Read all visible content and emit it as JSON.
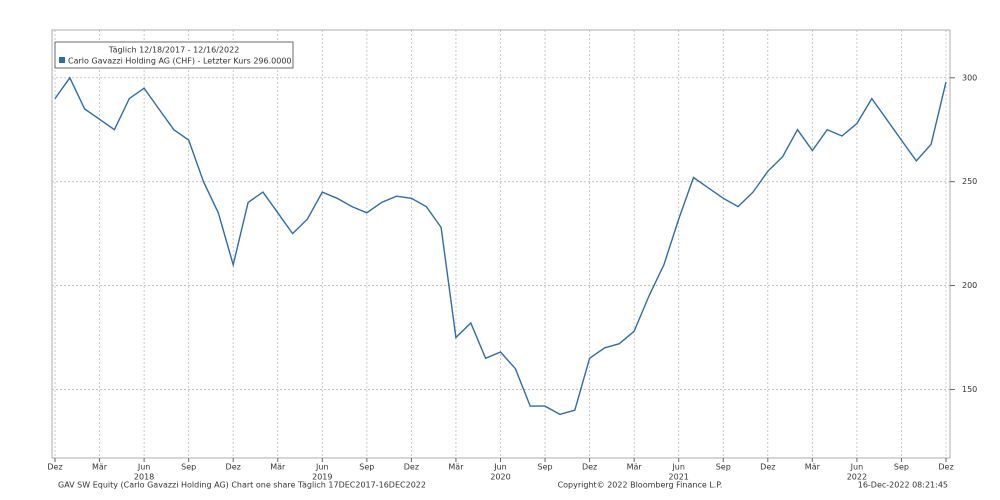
{
  "chart_data": {
    "type": "line",
    "legend_title": "Täglich 12/18/2017 - 12/16/2022",
    "footer_left": "GAV SW Equity (Carlo Gavazzi Holding AG) Chart one share  Täglich 17DEC2017-16DEC2022",
    "footer_center": "Copyright© 2022 Bloomberg Finance L.P.",
    "footer_right": "16-Dec-2022 08:21:45",
    "x": [
      "2017-12",
      "2018-01",
      "2018-02",
      "2018-03",
      "2018-04",
      "2018-05",
      "2018-06",
      "2018-07",
      "2018-08",
      "2018-09",
      "2018-10",
      "2018-11",
      "2018-12",
      "2019-01",
      "2019-02",
      "2019-03",
      "2019-04",
      "2019-05",
      "2019-06",
      "2019-07",
      "2019-08",
      "2019-09",
      "2019-10",
      "2019-11",
      "2019-12",
      "2020-01",
      "2020-02",
      "2020-03",
      "2020-04",
      "2020-05",
      "2020-06",
      "2020-07",
      "2020-08",
      "2020-09",
      "2020-10",
      "2020-11",
      "2020-12",
      "2021-01",
      "2021-02",
      "2021-03",
      "2021-04",
      "2021-05",
      "2021-06",
      "2021-07",
      "2021-08",
      "2021-09",
      "2021-10",
      "2021-11",
      "2021-12",
      "2022-01",
      "2022-02",
      "2022-03",
      "2022-04",
      "2022-05",
      "2022-06",
      "2022-07",
      "2022-08",
      "2022-09",
      "2022-10",
      "2022-11",
      "2022-12"
    ],
    "series": [
      {
        "name": "Carlo Gavazzi Holding AG (CHF) - Letzter Kurs 296.0000",
        "color": "#2f6ba8",
        "values": [
          290,
          300,
          285,
          280,
          275,
          290,
          295,
          285,
          275,
          270,
          250,
          235,
          210,
          240,
          245,
          235,
          225,
          232,
          245,
          242,
          238,
          235,
          240,
          243,
          242,
          238,
          228,
          175,
          182,
          165,
          168,
          160,
          142,
          142,
          138,
          140,
          165,
          170,
          172,
          178,
          195,
          210,
          232,
          252,
          247,
          242,
          238,
          245,
          255,
          262,
          275,
          265,
          275,
          272,
          278,
          290,
          280,
          270,
          260,
          268,
          298
        ]
      }
    ],
    "xlim": [
      "2017-12",
      "2022-12"
    ],
    "xticks": [
      {
        "value": "2017-12",
        "label": "Dez"
      },
      {
        "value": "2018-03",
        "label": "Mär"
      },
      {
        "value": "2018-06",
        "label": "Jun"
      },
      {
        "value": "2018-09",
        "label": "Sep"
      },
      {
        "value": "2018-12",
        "label": "Dez"
      },
      {
        "value": "2019-03",
        "label": "Mär"
      },
      {
        "value": "2019-06",
        "label": "Jun"
      },
      {
        "value": "2019-09",
        "label": "Sep"
      },
      {
        "value": "2019-12",
        "label": "Dez"
      },
      {
        "value": "2020-03",
        "label": "Mär"
      },
      {
        "value": "2020-06",
        "label": "Jun"
      },
      {
        "value": "2020-09",
        "label": "Sep"
      },
      {
        "value": "2020-12",
        "label": "Dez"
      },
      {
        "value": "2021-03",
        "label": "Mär"
      },
      {
        "value": "2021-06",
        "label": "Jun"
      },
      {
        "value": "2021-09",
        "label": "Sep"
      },
      {
        "value": "2021-12",
        "label": "Dez"
      },
      {
        "value": "2022-03",
        "label": "Mär"
      },
      {
        "value": "2022-06",
        "label": "Jun"
      },
      {
        "value": "2022-09",
        "label": "Sep"
      },
      {
        "value": "2022-12",
        "label": "Dez"
      }
    ],
    "year_labels": [
      {
        "value": "2018-06",
        "label": "2018"
      },
      {
        "value": "2019-06",
        "label": "2019"
      },
      {
        "value": "2020-06",
        "label": "2020"
      },
      {
        "value": "2021-06",
        "label": "2021"
      },
      {
        "value": "2022-06",
        "label": "2022"
      }
    ],
    "ylim": [
      117,
      323
    ],
    "yticks": [
      150,
      200,
      250,
      300
    ],
    "grid": true
  }
}
